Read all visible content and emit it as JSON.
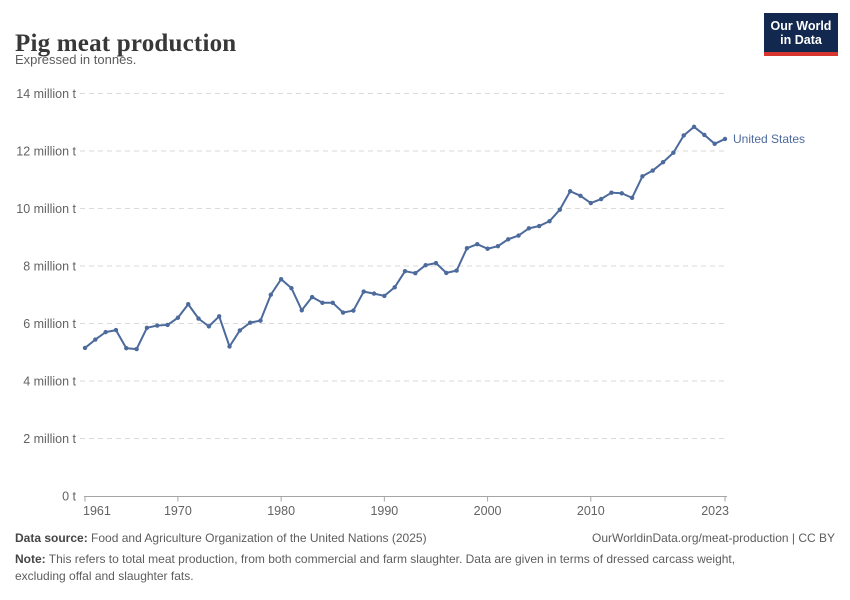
{
  "header": {
    "title": "Pig meat production",
    "subtitle": "Expressed in tonnes.",
    "logo": {
      "line1": "Our World",
      "line2": "in Data"
    }
  },
  "chart_data": {
    "type": "line",
    "title": "Pig meat production",
    "subtitle": "Expressed in tonnes.",
    "unit": "million tonnes",
    "grid": "horizontal-dashed",
    "legend_position": "end-of-line",
    "ylim": [
      0,
      14
    ],
    "yticks": {
      "values": [
        0,
        2,
        4,
        6,
        8,
        10,
        12,
        14
      ],
      "labels": [
        "0 t",
        "2 million t",
        "4 million t",
        "6 million t",
        "8 million t",
        "10 million t",
        "12 million t",
        "14 million t"
      ]
    },
    "xticks": [
      1961,
      1970,
      1980,
      1990,
      2000,
      2010,
      2023
    ],
    "x": [
      1961,
      1962,
      1963,
      1964,
      1965,
      1966,
      1967,
      1968,
      1969,
      1970,
      1971,
      1972,
      1973,
      1974,
      1975,
      1976,
      1977,
      1978,
      1979,
      1980,
      1981,
      1982,
      1983,
      1984,
      1985,
      1986,
      1987,
      1988,
      1989,
      1990,
      1991,
      1992,
      1993,
      1994,
      1995,
      1996,
      1997,
      1998,
      1999,
      2000,
      2001,
      2002,
      2003,
      2004,
      2005,
      2006,
      2007,
      2008,
      2009,
      2010,
      2011,
      2012,
      2013,
      2014,
      2015,
      2016,
      2017,
      2018,
      2019,
      2020,
      2021,
      2022,
      2023
    ],
    "series": [
      {
        "name": "United States",
        "color": "#4c6a9c",
        "values": [
          5.15,
          5.44,
          5.7,
          5.77,
          5.14,
          5.11,
          5.85,
          5.93,
          5.95,
          6.2,
          6.67,
          6.17,
          5.9,
          6.25,
          5.2,
          5.76,
          6.03,
          6.1,
          7.0,
          7.54,
          7.23,
          6.46,
          6.92,
          6.72,
          6.72,
          6.38,
          6.45,
          7.11,
          7.04,
          6.96,
          7.26,
          7.82,
          7.75,
          8.03,
          8.1,
          7.76,
          7.84,
          8.62,
          8.76,
          8.6,
          8.69,
          8.93,
          9.06,
          9.31,
          9.39,
          9.56,
          9.96,
          10.6,
          10.44,
          10.19,
          10.33,
          10.55,
          10.53,
          10.37,
          11.12,
          11.32,
          11.61,
          11.94,
          12.54,
          12.84,
          12.56,
          12.25,
          12.42
        ]
      }
    ]
  },
  "footer": {
    "source_label": "Data source:",
    "source_text": "Food and Agriculture Organization of the United Nations (2025)",
    "link_text": "OurWorldinData.org/meat-production | CC BY",
    "note_label": "Note:",
    "note_line1": "This refers to total meat production, from both commercial and farm slaughter. Data are given in terms of dressed carcass weight,",
    "note_line2": "excluding offal and slaughter fats."
  }
}
